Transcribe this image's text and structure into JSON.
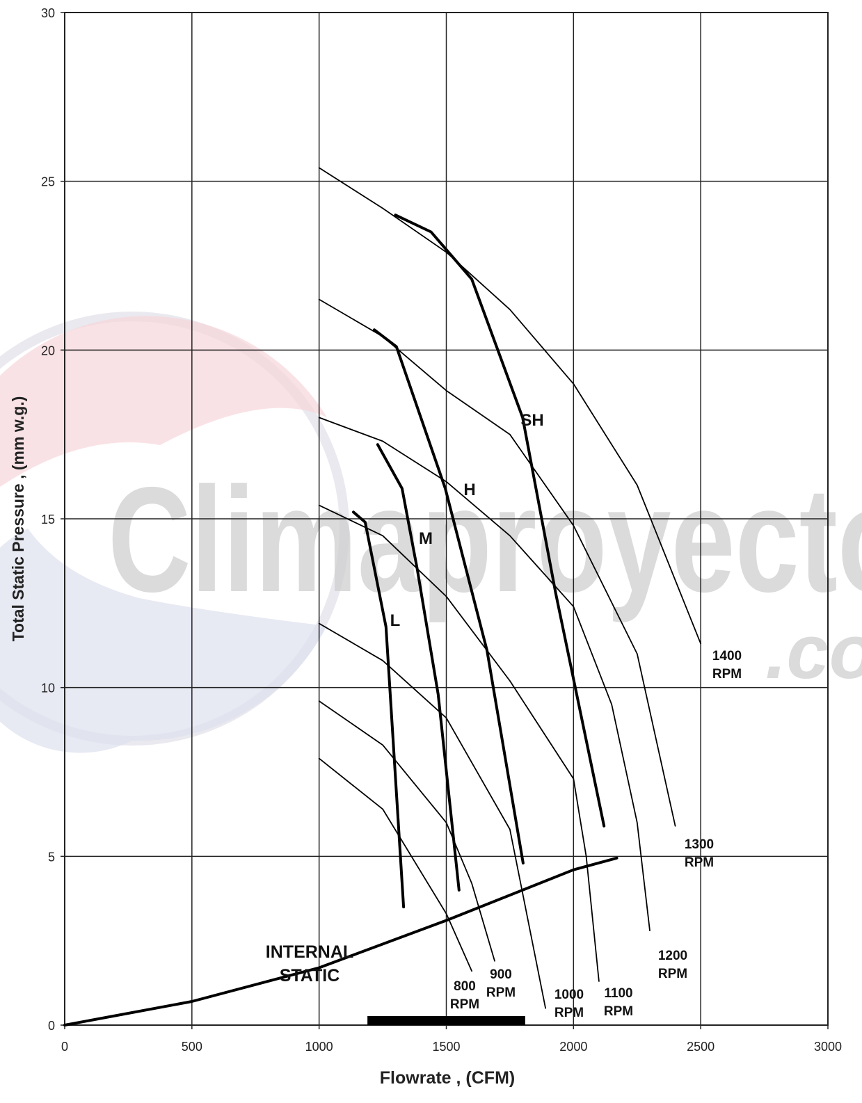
{
  "chart_data": {
    "type": "line",
    "xlabel": "Flowrate , (CFM)",
    "ylabel": "Total Static Pressure , (mm w.g.)",
    "xlim": [
      0,
      3000
    ],
    "ylim": [
      0,
      30
    ],
    "xticks": [
      0,
      500,
      1000,
      1500,
      2000,
      2500,
      3000
    ],
    "yticks": [
      0,
      5,
      10,
      15,
      20,
      25,
      30
    ],
    "grid": true,
    "watermark": {
      "text": "Climaproyecto",
      "suffix": ".co"
    },
    "series": [
      {
        "name": "1400 RPM",
        "color": "#000000",
        "x": [
          1000,
          1250,
          1500,
          1750,
          2000,
          2250,
          2500
        ],
        "values": [
          25.4,
          24.2,
          22.9,
          21.2,
          19.0,
          16.0,
          11.3
        ]
      },
      {
        "name": "1300 RPM",
        "color": "#000000",
        "x": [
          1000,
          1250,
          1500,
          1750,
          2000,
          2250,
          2400
        ],
        "values": [
          21.5,
          20.4,
          18.8,
          17.5,
          14.8,
          11.0,
          5.9
        ]
      },
      {
        "name": "1200 RPM",
        "color": "#000000",
        "x": [
          1000,
          1250,
          1500,
          1750,
          2000,
          2150,
          2250,
          2300
        ],
        "values": [
          18.0,
          17.3,
          16.1,
          14.5,
          12.4,
          9.5,
          6.0,
          2.8
        ]
      },
      {
        "name": "1100 RPM",
        "color": "#000000",
        "x": [
          1000,
          1250,
          1500,
          1750,
          2000,
          2050,
          2100
        ],
        "values": [
          15.4,
          14.5,
          12.7,
          10.2,
          7.3,
          5.0,
          1.3
        ]
      },
      {
        "name": "1000 RPM",
        "color": "#000000",
        "x": [
          1000,
          1250,
          1500,
          1750,
          1890
        ],
        "values": [
          11.9,
          10.8,
          9.1,
          5.8,
          0.5
        ]
      },
      {
        "name": "900 RPM",
        "color": "#000000",
        "x": [
          1000,
          1250,
          1500,
          1600,
          1690
        ],
        "values": [
          9.6,
          8.3,
          6.0,
          4.2,
          1.9
        ]
      },
      {
        "name": "800 RPM",
        "color": "#000000",
        "x": [
          1000,
          1250,
          1500,
          1600
        ],
        "values": [
          7.9,
          6.4,
          3.3,
          1.6
        ]
      }
    ],
    "speed_curves": [
      {
        "name": "SH",
        "color": "#000000",
        "x": [
          1300,
          1440,
          1600,
          1800,
          1930,
          2120
        ],
        "values": [
          24.0,
          23.5,
          22.1,
          18.0,
          12.8,
          5.9
        ]
      },
      {
        "name": "H",
        "color": "#000000",
        "x": [
          1217,
          1304,
          1496,
          1660,
          1802
        ],
        "values": [
          20.6,
          20.1,
          15.9,
          11.1,
          4.8
        ]
      },
      {
        "name": "M",
        "color": "#000000",
        "x": [
          1230,
          1326,
          1386,
          1468,
          1550
        ],
        "values": [
          17.2,
          15.9,
          13.5,
          9.8,
          4.0
        ]
      },
      {
        "name": "L",
        "color": "#000000",
        "x": [
          1135,
          1181,
          1263,
          1332
        ],
        "values": [
          15.2,
          14.9,
          11.8,
          3.5
        ]
      }
    ],
    "internal_static": {
      "name": "INTERNAL STATIC",
      "color": "#000000",
      "x": [
        0,
        500,
        1000,
        1500,
        2000,
        2170
      ],
      "values": [
        0,
        0.7,
        1.7,
        3.1,
        4.6,
        4.95
      ]
    },
    "operating_range": {
      "x": [
        1190,
        1810
      ],
      "color": "#000000"
    }
  }
}
